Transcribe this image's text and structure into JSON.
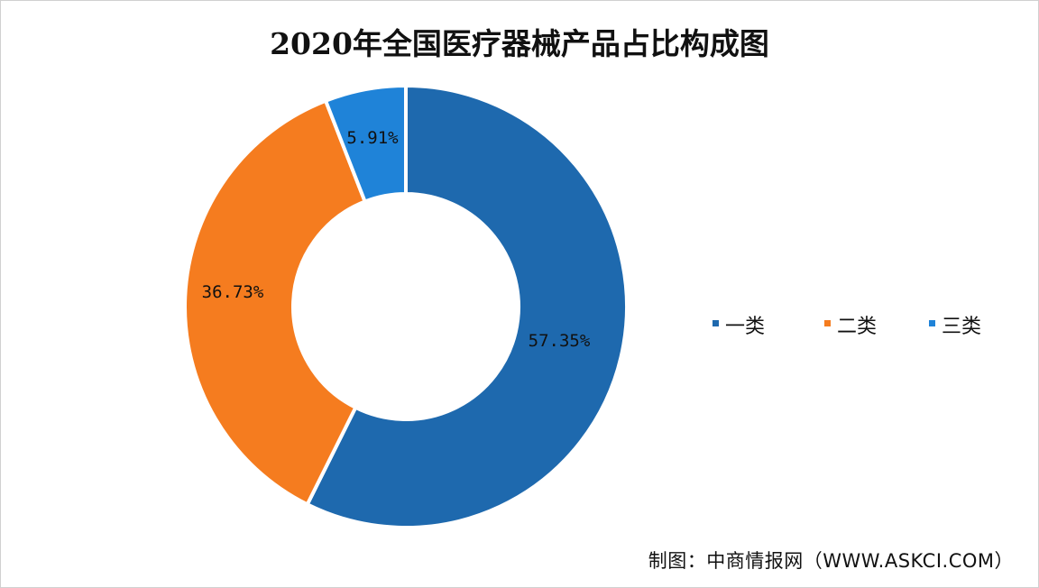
{
  "chart_data": {
    "type": "pie",
    "variant": "donut",
    "title": "2020年全国医疗器械产品占比构成图",
    "categories": [
      "一类",
      "二类",
      "三类"
    ],
    "values": [
      57.35,
      36.73,
      5.91
    ],
    "labels": [
      "57.35%",
      "36.73%",
      "5.91%"
    ],
    "colors": [
      "#1e69ae",
      "#f57c1f",
      "#1f83d8"
    ],
    "legend_position": "right",
    "source": "制图：中商情报网（WWW.ASKCI.COM）"
  }
}
